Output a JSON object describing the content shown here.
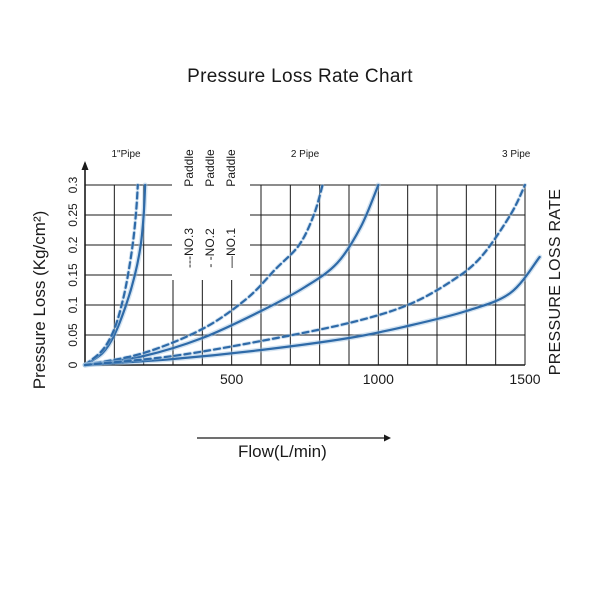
{
  "chart_data": {
    "type": "line",
    "title": "Pressure Loss Rate Chart",
    "xlabel": "Flow(L/min)",
    "ylabel": "Pressure Loss  (Kg/cm²)",
    "right_label": "PRESSURE LOSS RATE",
    "xlim": [
      0,
      1500
    ],
    "ylim": [
      0,
      0.3
    ],
    "x_ticks": [
      500,
      1000,
      1500
    ],
    "y_ticks": [
      0,
      0.05,
      0.1,
      0.15,
      0.2,
      0.25,
      0.3
    ],
    "x_tick_labels": [
      "500",
      "1000",
      "1500"
    ],
    "y_tick_labels": [
      "0",
      "0.05",
      "0.1",
      "0.15",
      "0.2",
      "0.25",
      "0.3"
    ],
    "grid": true,
    "groups": [
      {
        "label": "1\"Pipe",
        "x_position": 140
      },
      {
        "label": "2 Pipe",
        "x_position": 750
      },
      {
        "label": "3 Pipe",
        "x_position": 1470
      }
    ],
    "legend": [
      {
        "marker": "---",
        "text": "NO.3",
        "paddle": "Paddle"
      },
      {
        "marker": "- -",
        "text": "NO.2",
        "paddle": "Paddle"
      },
      {
        "marker": "—",
        "text": "NO.1",
        "paddle": "Paddle"
      }
    ],
    "series": [
      {
        "group": "1\"Pipe",
        "style": "solid",
        "x": [
          0,
          60,
          100,
          140,
          170,
          190,
          200,
          205
        ],
        "y": [
          0,
          0.02,
          0.05,
          0.1,
          0.15,
          0.2,
          0.25,
          0.3
        ]
      },
      {
        "group": "1\"Pipe",
        "style": "dashed",
        "x": [
          0,
          60,
          100,
          130,
          150,
          165,
          175,
          180
        ],
        "y": [
          0,
          0.025,
          0.06,
          0.11,
          0.16,
          0.21,
          0.26,
          0.3
        ]
      },
      {
        "group": "2 Pipe",
        "style": "solid",
        "x": [
          0,
          200,
          400,
          600,
          750,
          860,
          940,
          1000
        ],
        "y": [
          0,
          0.015,
          0.045,
          0.09,
          0.13,
          0.17,
          0.23,
          0.3
        ]
      },
      {
        "group": "2 Pipe",
        "style": "dashed",
        "x": [
          0,
          200,
          400,
          550,
          650,
          730,
          780,
          810
        ],
        "y": [
          0,
          0.02,
          0.06,
          0.11,
          0.16,
          0.2,
          0.25,
          0.3
        ]
      },
      {
        "group": "3 Pipe",
        "style": "solid",
        "x": [
          0,
          300,
          600,
          900,
          1100,
          1300,
          1450,
          1550
        ],
        "y": [
          0,
          0.01,
          0.025,
          0.045,
          0.065,
          0.09,
          0.12,
          0.18
        ]
      },
      {
        "group": "3 Pipe",
        "style": "dashed",
        "x": [
          0,
          300,
          600,
          900,
          1100,
          1250,
          1350,
          1450,
          1500
        ],
        "y": [
          0,
          0.015,
          0.04,
          0.07,
          0.1,
          0.14,
          0.18,
          0.25,
          0.3
        ]
      }
    ],
    "colors": {
      "line": "#2e6aa8",
      "grid": "#1a1a1a",
      "text": "#1a1a1a"
    }
  }
}
